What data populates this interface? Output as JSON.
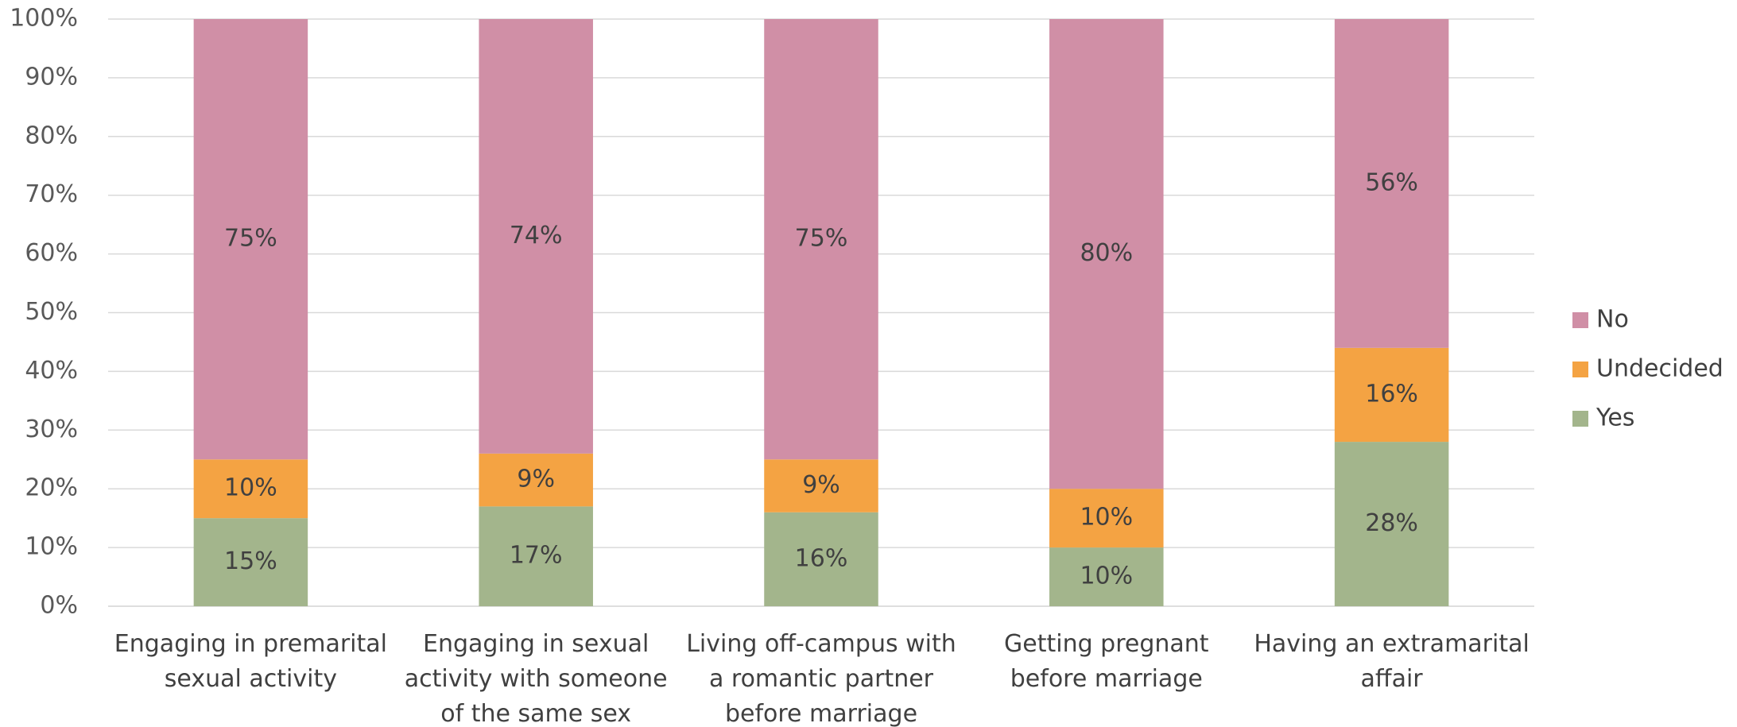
{
  "chart_data": {
    "type": "stacked_bar",
    "categories": [
      "Engaging in premarital sexual activity",
      "Engaging in sexual activity with someone of the same sex",
      "Living off-campus with a romantic partner before marriage",
      "Getting pregnant before marriage",
      "Having an extramarital affair"
    ],
    "series": [
      {
        "name": "Yes",
        "color": "#a3b58c",
        "values": [
          15,
          17,
          16,
          10,
          28
        ],
        "value_labels": [
          "15%",
          "17%",
          "16%",
          "10%",
          "28%"
        ]
      },
      {
        "name": "Undecided",
        "color": "#f4a343",
        "values": [
          10,
          9,
          9,
          10,
          16
        ],
        "value_labels": [
          "10%",
          "9%",
          "9%",
          "10%",
          "16%"
        ]
      },
      {
        "name": "No",
        "color": "#d08fa6",
        "values": [
          75,
          74,
          75,
          80,
          56
        ],
        "value_labels": [
          "75%",
          "74%",
          "75%",
          "80%",
          "56%"
        ]
      }
    ],
    "ylim": [
      0,
      100
    ],
    "yticks": [
      {
        "value": 0,
        "label": "0%"
      },
      {
        "value": 10,
        "label": "10%"
      },
      {
        "value": 20,
        "label": "20%"
      },
      {
        "value": 30,
        "label": "30%"
      },
      {
        "value": 40,
        "label": "40%"
      },
      {
        "value": 50,
        "label": "50%"
      },
      {
        "value": 60,
        "label": "60%"
      },
      {
        "value": 70,
        "label": "70%"
      },
      {
        "value": 80,
        "label": "80%"
      },
      {
        "value": 90,
        "label": "90%"
      },
      {
        "value": 100,
        "label": "100%"
      }
    ],
    "grid": true,
    "legend": "right"
  }
}
